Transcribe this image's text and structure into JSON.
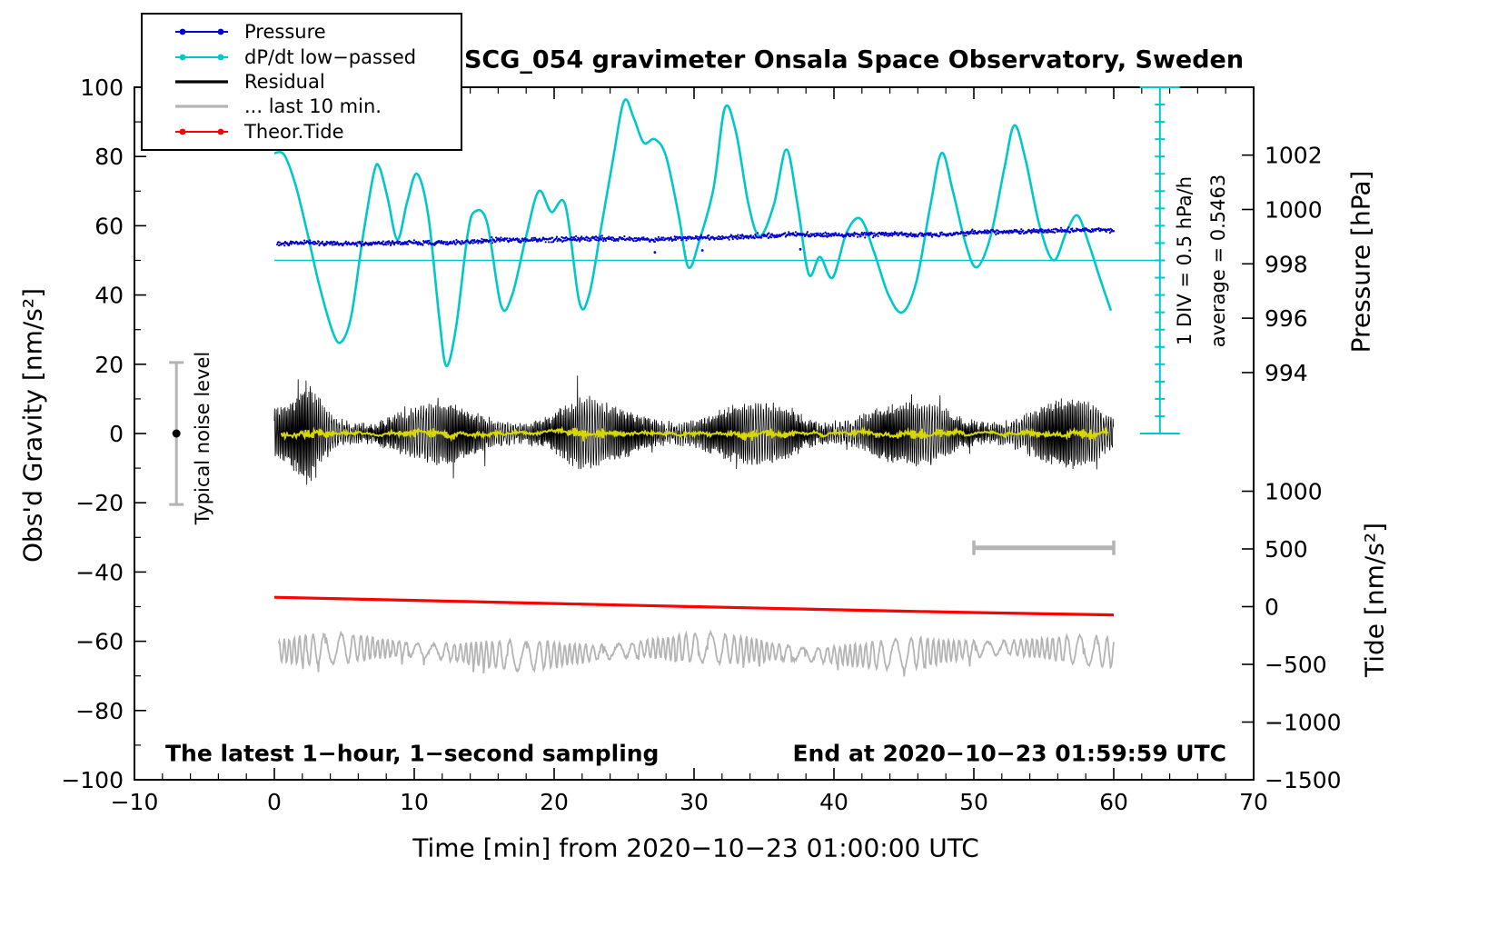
{
  "legend": {
    "items": [
      {
        "label": "Pressure",
        "color": "#0000d2",
        "sample": "line-dots"
      },
      {
        "label": "dP/dt low−passed",
        "color": "#00c8c8",
        "sample": "line-dots"
      },
      {
        "label": "Residual",
        "color": "#000000",
        "sample": "line"
      },
      {
        "label": "... last 10 min.",
        "color": "#b4b4b4",
        "sample": "line"
      },
      {
        "label": "Theor.Tide",
        "color": "#ff0000",
        "sample": "line-dots"
      }
    ]
  },
  "chart_data": {
    "type": "line",
    "title": "SCG_054 gravimeter Onsala Space Observatory, Sweden",
    "xlabel": "Time [min] from 2020−10−23 01:00:00 UTC",
    "xlim": [
      -10,
      70
    ],
    "x_major_ticks": [
      -10,
      0,
      10,
      20,
      30,
      40,
      50,
      60,
      70
    ],
    "x_minor_step": 2,
    "grid": false,
    "legend_position": "top-left",
    "left_axis": {
      "label": "Obs'd Gravity [nm/s²]",
      "lim": [
        -100,
        100
      ],
      "major_ticks": [
        -100,
        -80,
        -60,
        -40,
        -20,
        0,
        20,
        40,
        60,
        80,
        100
      ],
      "minor_step": 10
    },
    "pressure_axis": {
      "label": "Pressure [hPa]",
      "ticks": [
        1002,
        1000,
        998,
        996,
        994
      ],
      "gravity_at_998": 49,
      "gravity_per_hpa": 7.85
    },
    "tide_axis": {
      "label": "Tide [nm/s²]",
      "ticks": [
        1000,
        500,
        0,
        -500,
        -1000,
        -1500
      ],
      "gravity_at_0": -50,
      "tide_per_gravity": 30
    },
    "series": [
      {
        "name": "Pressure",
        "color": "#0000d2",
        "style": "dots",
        "g_trend": {
          "x": [
            0,
            60
          ],
          "g": [
            54.5,
            58.7
          ]
        },
        "hpa_trend": {
          "x": [
            0,
            60
          ],
          "hpa": [
            998.7,
            999.24
          ]
        },
        "noise_sd_g": 0.33,
        "outliers_g": [
          [
            27.2,
            52.3
          ],
          [
            30.6,
            52.9
          ],
          [
            37.6,
            53.2
          ]
        ]
      },
      {
        "name": "dP/dt low−passed",
        "color": "#00c8c8",
        "style": "line",
        "average_line_g": 50,
        "points_g": [
          [
            0,
            81
          ],
          [
            0.7,
            80.5
          ],
          [
            1.5,
            72
          ],
          [
            2.3,
            59
          ],
          [
            3.2,
            43
          ],
          [
            4.2,
            29
          ],
          [
            4.8,
            26.5
          ],
          [
            5.5,
            34
          ],
          [
            6.3,
            56
          ],
          [
            7.1,
            75
          ],
          [
            7.5,
            77
          ],
          [
            8.1,
            68
          ],
          [
            8.8,
            56
          ],
          [
            9.5,
            67
          ],
          [
            10.2,
            75
          ],
          [
            11,
            63
          ],
          [
            11.8,
            33
          ],
          [
            12.3,
            19.5
          ],
          [
            13,
            31
          ],
          [
            13.8,
            57
          ],
          [
            14.3,
            64
          ],
          [
            15.2,
            61
          ],
          [
            16.2,
            37
          ],
          [
            17,
            40
          ],
          [
            18,
            57
          ],
          [
            18.9,
            70
          ],
          [
            19.8,
            64
          ],
          [
            20.8,
            66
          ],
          [
            21.8,
            38
          ],
          [
            22.5,
            40
          ],
          [
            23.3,
            58
          ],
          [
            24.2,
            79
          ],
          [
            25,
            96
          ],
          [
            25.7,
            91
          ],
          [
            26.4,
            84
          ],
          [
            27.2,
            85
          ],
          [
            28,
            80
          ],
          [
            28.9,
            63
          ],
          [
            29.6,
            48
          ],
          [
            30.4,
            56
          ],
          [
            31.4,
            71
          ],
          [
            32.2,
            94
          ],
          [
            33,
            87
          ],
          [
            33.9,
            66
          ],
          [
            34.7,
            57
          ],
          [
            35.7,
            66
          ],
          [
            36.6,
            82
          ],
          [
            37.4,
            66
          ],
          [
            38.2,
            46
          ],
          [
            39,
            51
          ],
          [
            39.9,
            45
          ],
          [
            40.9,
            58
          ],
          [
            41.9,
            62
          ],
          [
            42.9,
            52
          ],
          [
            43.9,
            40
          ],
          [
            44.9,
            35
          ],
          [
            45.9,
            44
          ],
          [
            46.9,
            66
          ],
          [
            47.7,
            81
          ],
          [
            48.5,
            70
          ],
          [
            49.4,
            55
          ],
          [
            50.2,
            48
          ],
          [
            51.2,
            57
          ],
          [
            52.2,
            77
          ],
          [
            52.9,
            89
          ],
          [
            53.7,
            79
          ],
          [
            54.7,
            60
          ],
          [
            55.7,
            50
          ],
          [
            56.6,
            58
          ],
          [
            57.4,
            63
          ],
          [
            58.2,
            55
          ],
          [
            59,
            45
          ],
          [
            59.8,
            35.5
          ]
        ]
      },
      {
        "name": "Residual",
        "color": "#000000",
        "style": "noisy-line",
        "center_g": 0,
        "x_range": [
          0,
          60
        ],
        "amplitude_envelope_g": [
          [
            0,
            8
          ],
          [
            0.8,
            9
          ],
          [
            1.5,
            13
          ],
          [
            2.2,
            20
          ],
          [
            2.6,
            21
          ],
          [
            3.1,
            18
          ],
          [
            3.7,
            14
          ],
          [
            4.4,
            11.5
          ],
          [
            5.2,
            10
          ],
          [
            6.5,
            9
          ],
          [
            8,
            10
          ],
          [
            10,
            9.5
          ],
          [
            12,
            10
          ],
          [
            14,
            9.5
          ],
          [
            16,
            10
          ],
          [
            18,
            9.5
          ],
          [
            20,
            10
          ],
          [
            22,
            12.5
          ],
          [
            23.5,
            10
          ],
          [
            26,
            9.5
          ],
          [
            28,
            11.5
          ],
          [
            30,
            10
          ],
          [
            32,
            10
          ],
          [
            34,
            10
          ],
          [
            35.5,
            10.5
          ],
          [
            37,
            12
          ],
          [
            38.5,
            10
          ],
          [
            40,
            9.5
          ],
          [
            42,
            11
          ],
          [
            43.5,
            11
          ],
          [
            45,
            10
          ],
          [
            47,
            11
          ],
          [
            49,
            10
          ],
          [
            51,
            10
          ],
          [
            53,
            10
          ],
          [
            55,
            10.5
          ],
          [
            57,
            11.5
          ],
          [
            58.5,
            11
          ],
          [
            60,
            9.5
          ]
        ]
      },
      {
        "name": "Residual smoothed overlay",
        "color": "#d8d800",
        "style": "line",
        "derived_from": "moving average of Residual",
        "typical_amplitude_g": 5,
        "x_range": [
          0.5,
          60
        ]
      },
      {
        "name": "... last 10 min.",
        "color": "#b4b4b4",
        "style": "noisy-line",
        "center_g": -63,
        "amplitude_g": 4.3,
        "x_range": [
          0.3,
          60
        ]
      },
      {
        "name": "Theor.Tide",
        "color": "#ff0000",
        "style": "line",
        "points_g": [
          [
            0,
            -47.3
          ],
          [
            10,
            -48.2
          ],
          [
            20,
            -49.1
          ],
          [
            30,
            -50.0
          ],
          [
            40,
            -50.9
          ],
          [
            50,
            -51.7
          ],
          [
            60,
            -52.4
          ]
        ],
        "points_tide_units": [
          [
            0,
            81
          ],
          [
            10,
            54
          ],
          [
            20,
            27
          ],
          [
            30,
            0
          ],
          [
            40,
            -27
          ],
          [
            50,
            -51
          ],
          [
            60,
            -72
          ]
        ]
      }
    ],
    "ruler": {
      "x_g": 63.3,
      "g_range": [
        0,
        100
      ],
      "div_g": 5,
      "avg_line_x_range": [
        0,
        63.3
      ],
      "label1": "1 DIV = 0.5 hPa/h",
      "label2": "average = 0.5463"
    },
    "noise_bar": {
      "x": -7,
      "g_range": [
        -20.5,
        20.5
      ],
      "dot_g": 0,
      "label": "Typical noise level",
      "color": "#b4b4b4"
    },
    "last10_span_bar": {
      "x_range": [
        50,
        60
      ],
      "g": -33,
      "color": "#b4b4b4"
    },
    "notes": {
      "bottom_left": "The latest 1−hour, 1−second sampling",
      "bottom_right": "End at 2020−10−23 01:59:59 UTC"
    }
  }
}
